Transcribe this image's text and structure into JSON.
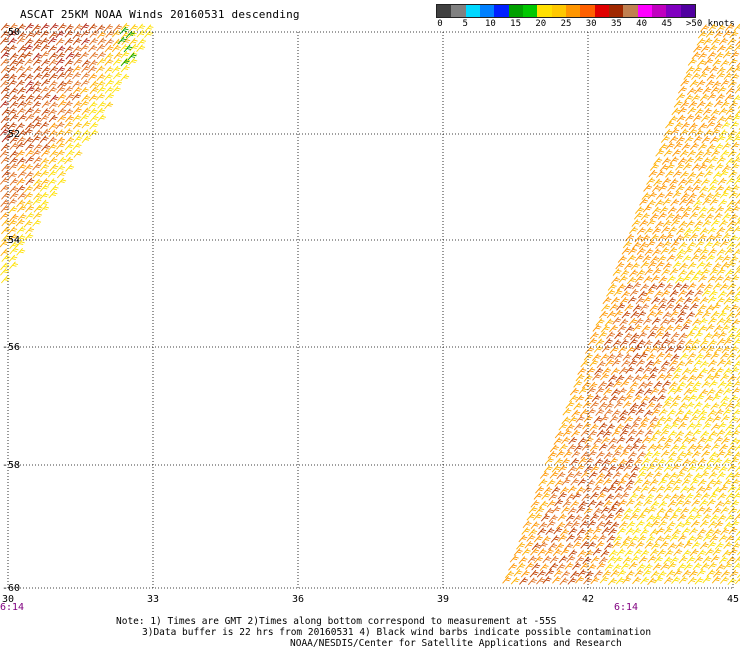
{
  "title": "ASCAT 25KM NOAA Winds 20160531 descending",
  "legend": {
    "colors": [
      "#404040",
      "#808080",
      "#00d8ff",
      "#0080ff",
      "#0020ff",
      "#00a000",
      "#00c800",
      "#ffe000",
      "#ffc800",
      "#ff9600",
      "#ff6000",
      "#e00000",
      "#a02800",
      "#c08050",
      "#ff00ff",
      "#c000c0",
      "#8000c0",
      "#5000a0"
    ],
    "labels": [
      "0",
      "5",
      "10",
      "15",
      "20",
      "25",
      "30",
      "35",
      "40",
      "45",
      ">50 knots"
    ]
  },
  "map": {
    "lon_ticks": [
      "30",
      "33",
      "36",
      "39",
      "42",
      "45"
    ],
    "lat_ticks": [
      "-50",
      "-52",
      "-54",
      "-56",
      "-58",
      "-60"
    ],
    "time_left": "6:14",
    "time_right": "6:14",
    "time_color": "#800080"
  },
  "note": {
    "line1": "Note: 1) Times are GMT 2)Times along bottom correspond to measurement at -55S",
    "line2": "3)Data buffer is 22 hrs from 20160531 4) Black wind barbs indicate possible contamination",
    "line3": "NOAA/NESDIS/Center for Satellite Applications and Research"
  }
}
